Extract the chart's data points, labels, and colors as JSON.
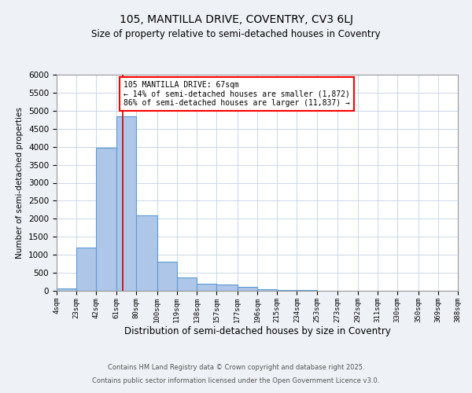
{
  "title1": "105, MANTILLA DRIVE, COVENTRY, CV3 6LJ",
  "title2": "Size of property relative to semi-detached houses in Coventry",
  "xlabel": "Distribution of semi-detached houses by size in Coventry",
  "ylabel": "Number of semi-detached properties",
  "annotation_title": "105 MANTILLA DRIVE: 67sqm",
  "annotation_line1": "← 14% of semi-detached houses are smaller (1,872)",
  "annotation_line2": "86% of semi-detached houses are larger (11,837) →",
  "footer1": "Contains HM Land Registry data © Crown copyright and database right 2025.",
  "footer2": "Contains public sector information licensed under the Open Government Licence v3.0.",
  "bar_left_edges": [
    4,
    23,
    42,
    61,
    80,
    100,
    119,
    138,
    157,
    177,
    196,
    215,
    234,
    253,
    273,
    292,
    311,
    330,
    350,
    369
  ],
  "bar_widths": [
    19,
    19,
    19,
    19,
    20,
    19,
    19,
    19,
    20,
    19,
    19,
    19,
    19,
    20,
    19,
    19,
    19,
    20,
    19,
    19
  ],
  "bar_heights": [
    70,
    1200,
    3980,
    4850,
    2100,
    800,
    380,
    200,
    180,
    100,
    50,
    20,
    15,
    10,
    5,
    4,
    3,
    2,
    1,
    1
  ],
  "bar_color": "#aec6e8",
  "bar_edge_color": "#5b9bd5",
  "property_value": 67,
  "red_line_color": "#cc0000",
  "ylim": [
    0,
    6000
  ],
  "yticks": [
    0,
    500,
    1000,
    1500,
    2000,
    2500,
    3000,
    3500,
    4000,
    4500,
    5000,
    5500,
    6000
  ],
  "bg_color": "#eef2f7",
  "plot_bg_color": "#ffffff",
  "grid_color": "#c8d8e8",
  "x_tick_labels": [
    "4sqm",
    "23sqm",
    "42sqm",
    "61sqm",
    "80sqm",
    "100sqm",
    "119sqm",
    "138sqm",
    "157sqm",
    "177sqm",
    "196sqm",
    "215sqm",
    "234sqm",
    "253sqm",
    "273sqm",
    "292sqm",
    "311sqm",
    "330sqm",
    "350sqm",
    "369sqm",
    "388sqm"
  ]
}
